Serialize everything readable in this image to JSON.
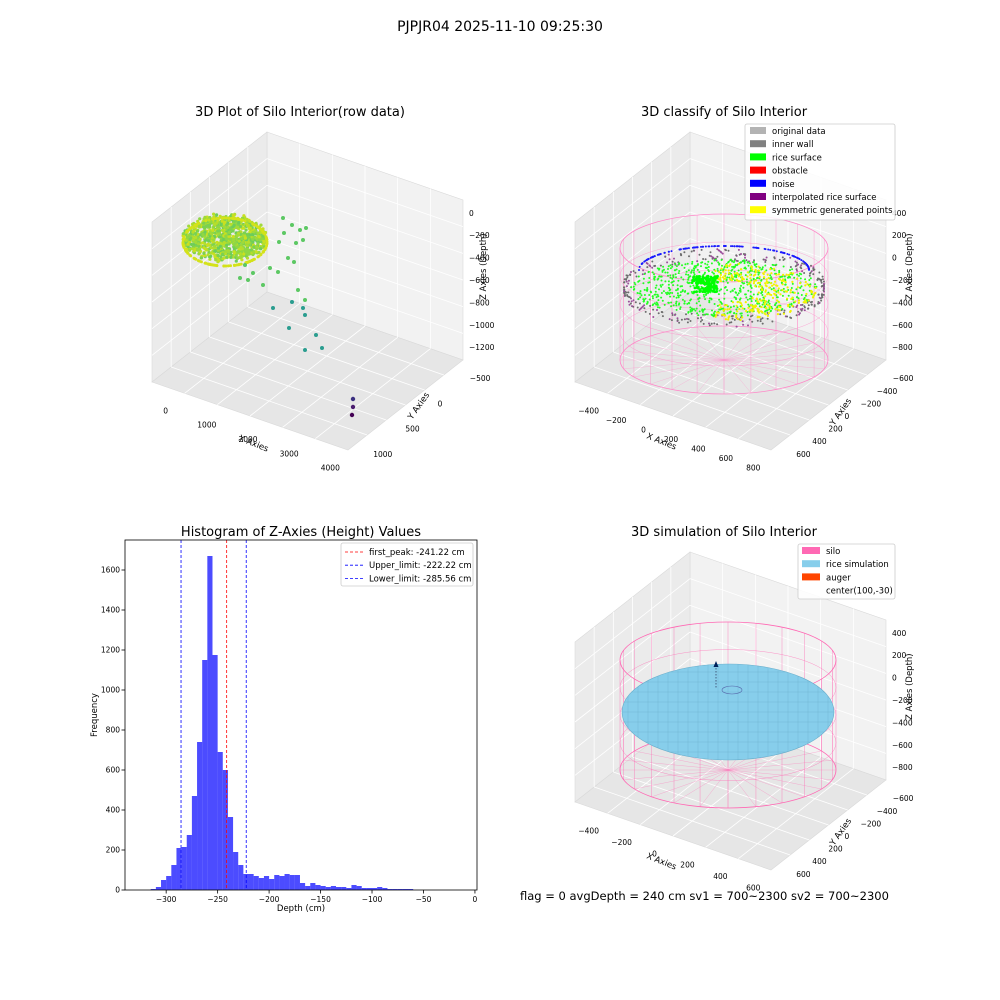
{
  "suptitle": "PJPJR04 2025-11-10 09:25:30",
  "footer": "flag = 0     avgDepth = 240 cm  sv1 = 700~2300  sv2 = 700~2300",
  "panels": {
    "raw": {
      "title": "3D Plot of Silo Interior(row data)",
      "xlabel": "X Axies",
      "ylabel": "Y Axies",
      "zlabel": "Z Axies (Depth)",
      "xticks": [
        "0",
        "1000",
        "2000",
        "3000",
        "4000"
      ],
      "yticks": [
        "1000",
        "500",
        "0",
        "−500"
      ],
      "zticks": [
        "0",
        "−200",
        "−400",
        "−600",
        "−800",
        "−1000",
        "−1200"
      ]
    },
    "classify": {
      "title": "3D classify of Silo Interior",
      "xlabel": "X Axies",
      "ylabel": "Y Axies",
      "zlabel": "Z Axies (Depth)",
      "xticks": [
        "−400",
        "−200",
        "0",
        "200",
        "400",
        "600",
        "800"
      ],
      "yticks": [
        "600",
        "400",
        "200",
        "0",
        "−200",
        "−400",
        "−600"
      ],
      "zticks": [
        "400",
        "200",
        "0",
        "−200",
        "−400",
        "−600",
        "−800"
      ],
      "legend": [
        {
          "label": "original data",
          "color": "#b3b3b3"
        },
        {
          "label": "inner wall",
          "color": "#808080"
        },
        {
          "label": "rice surface",
          "color": "#00ff00"
        },
        {
          "label": "obstacle",
          "color": "#ff0000"
        },
        {
          "label": "noise",
          "color": "#0000ff"
        },
        {
          "label": "interpolated rice surface",
          "color": "#800080"
        },
        {
          "label": "symmetric generated points",
          "color": "#ffff00"
        }
      ]
    },
    "simulation": {
      "title": "3D simulation of Silo Interior",
      "xlabel": "X Axies",
      "ylabel": "Y Axies",
      "zlabel": "Z Axies (Depth)",
      "xticks": [
        "−400",
        "−200",
        "0",
        "200",
        "400",
        "600"
      ],
      "yticks": [
        "600",
        "400",
        "200",
        "0",
        "−200",
        "−400",
        "−600"
      ],
      "zticks": [
        "400",
        "200",
        "0",
        "−200",
        "−400",
        "−600",
        "−800"
      ],
      "legend": [
        {
          "label": "silo",
          "color": "#ff69b4"
        },
        {
          "label": "rice simulation",
          "color": "#87ceeb"
        },
        {
          "label": "auger",
          "color": "#ff4500"
        },
        {
          "label": "center(100,-30)",
          "color": ""
        }
      ]
    }
  },
  "chart_data": {
    "type": "bar",
    "title": "Histogram of Z-Axies (Height) Values",
    "xlabel": "Depth (cm)",
    "ylabel": "Frequency",
    "xlim": [
      -340,
      2
    ],
    "ylim": [
      0,
      1750
    ],
    "xticks": [
      -300,
      -250,
      -200,
      -150,
      -100,
      -50,
      0
    ],
    "yticks": [
      0,
      200,
      400,
      600,
      800,
      1000,
      1200,
      1400,
      1600
    ],
    "bin_width": 5,
    "bin_starts": [
      -320,
      -315,
      -310,
      -305,
      -300,
      -295,
      -290,
      -285,
      -280,
      -275,
      -270,
      -265,
      -260,
      -255,
      -250,
      -245,
      -240,
      -235,
      -230,
      -225,
      -220,
      -215,
      -210,
      -205,
      -200,
      -195,
      -190,
      -185,
      -180,
      -175,
      -170,
      -165,
      -160,
      -155,
      -150,
      -145,
      -140,
      -135,
      -130,
      -125,
      -120,
      -115,
      -110,
      -105,
      -100,
      -95,
      -90,
      -85,
      -80,
      -75,
      -70,
      -65,
      -60,
      -55,
      -50,
      -45,
      -40,
      -35,
      -30,
      -25,
      -20,
      -15
    ],
    "counts": [
      0,
      5,
      15,
      50,
      70,
      125,
      210,
      215,
      275,
      470,
      740,
      1150,
      1670,
      1175,
      690,
      600,
      365,
      190,
      125,
      80,
      80,
      70,
      60,
      70,
      55,
      75,
      70,
      80,
      75,
      75,
      35,
      20,
      35,
      25,
      20,
      15,
      20,
      15,
      15,
      10,
      25,
      20,
      10,
      10,
      10,
      15,
      10,
      5,
      5,
      5,
      5,
      5,
      0,
      0,
      0,
      0,
      0,
      0,
      0,
      0,
      0,
      0
    ],
    "bar_color": "#0000ff",
    "lines": [
      {
        "label": "first_peak: -241.22 cm",
        "x": -241.22,
        "color": "#ff0000"
      },
      {
        "label": "Upper_limit: -222.22 cm",
        "x": -222.22,
        "color": "#0000ff"
      },
      {
        "label": "Lower_limit: -285.56 cm",
        "x": -285.56,
        "color": "#0000ff"
      }
    ],
    "legend_position": "top-right"
  }
}
